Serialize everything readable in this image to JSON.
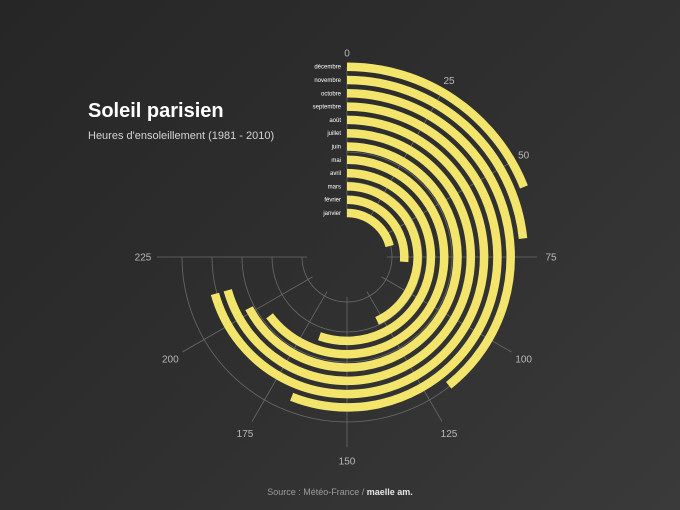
{
  "title": "Soleil parisien",
  "subtitle": "Heures d'ensoleillement (1981 - 2010)",
  "source": {
    "prefix": "Source : Météo-France / ",
    "author": "maelle am."
  },
  "colors": {
    "bar": "#f3e56b",
    "grid": "#6a6a6a",
    "tick": "#b8b8b8",
    "background": "#2b2b2b"
  },
  "chart_data": {
    "type": "bar",
    "subtype": "radial",
    "title": "Soleil parisien",
    "subtitle": "Heures d'ensoleillement (1981 - 2010)",
    "categories": [
      "janvier",
      "février",
      "mars",
      "avril",
      "mai",
      "juin",
      "juillet",
      "août",
      "septembre",
      "octobre",
      "novembre",
      "décembre"
    ],
    "values": [
      63,
      79,
      129,
      166,
      194,
      202,
      212,
      212,
      168,
      118,
      70,
      57
    ],
    "ylim": [
      0,
      225
    ],
    "ticks": [
      0,
      25,
      50,
      75,
      100,
      125,
      150,
      175,
      200,
      225
    ],
    "grid": true,
    "source": "Météo-France"
  }
}
